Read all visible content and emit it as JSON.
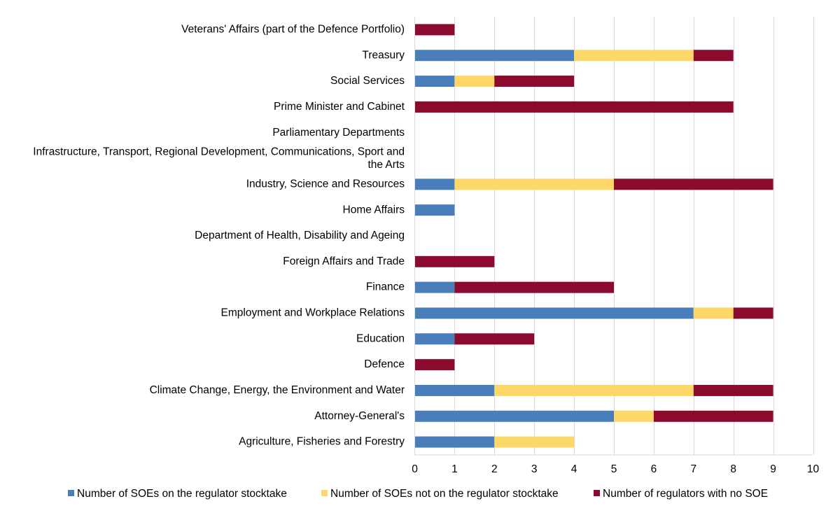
{
  "chart_data": {
    "type": "bar",
    "orientation": "horizontal",
    "stacked": true,
    "categories": [
      [
        "Veterans' Affairs (part of the Defence Portfolio)"
      ],
      [
        "Treasury"
      ],
      [
        "Social Services"
      ],
      [
        "Prime Minister and Cabinet"
      ],
      [
        "Parliamentary Departments"
      ],
      [
        "Infrastructure, Transport, Regional Development, Communications, Sport and",
        "the Arts"
      ],
      [
        "Industry, Science and Resources"
      ],
      [
        "Home Affairs"
      ],
      [
        "Department of Health, Disability and Ageing"
      ],
      [
        "Foreign Affairs and Trade"
      ],
      [
        "Finance"
      ],
      [
        "Employment and Workplace Relations"
      ],
      [
        "Education"
      ],
      [
        "Defence"
      ],
      [
        "Climate Change, Energy, the Environment and Water"
      ],
      [
        "Attorney-General's"
      ],
      [
        "Agriculture, Fisheries and Forestry"
      ]
    ],
    "series": [
      {
        "name": "Number of SOEs on the regulator stocktake",
        "color": "#4a7ebb",
        "values": [
          0,
          4,
          1,
          0,
          0,
          0,
          1,
          1,
          0,
          0,
          1,
          7,
          1,
          0,
          2,
          5,
          2
        ]
      },
      {
        "name": "Number of SOEs not on the regulator stocktake",
        "color": "#fdd869",
        "values": [
          0,
          3,
          1,
          0,
          0,
          0,
          4,
          0,
          0,
          0,
          0,
          1,
          0,
          0,
          5,
          1,
          2
        ]
      },
      {
        "name": "Number of regulators with no SOE",
        "color": "#8b0a2e",
        "values": [
          1,
          1,
          2,
          8,
          0,
          0,
          4,
          0,
          0,
          2,
          4,
          1,
          2,
          1,
          2,
          3,
          0
        ]
      }
    ],
    "xlim": [
      0,
      10
    ],
    "xticks": [
      "0",
      "1",
      "2",
      "3",
      "4",
      "5",
      "6",
      "7",
      "8",
      "9",
      "10"
    ],
    "grid": true,
    "legend_position": "bottom",
    "title": "",
    "xlabel": "",
    "ylabel": ""
  }
}
